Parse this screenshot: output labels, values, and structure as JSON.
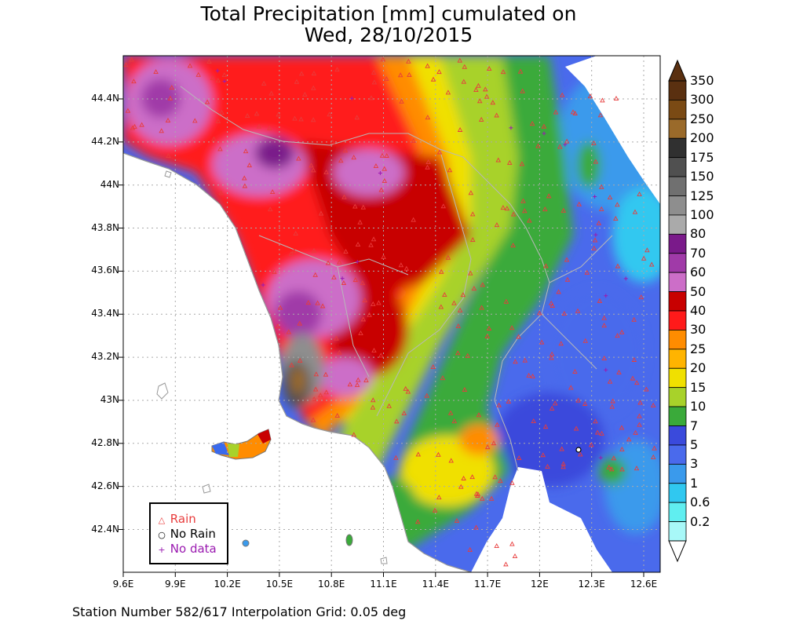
{
  "title": {
    "line1": "Total Precipitation [mm] cumulated on",
    "line2": "Wed, 28/10/2015"
  },
  "footer": "Station Number 582/617 Interpolation Grid: 0.05 deg",
  "axes": {
    "lon_ticks": [
      "9.6E",
      "9.9E",
      "10.2E",
      "10.5E",
      "10.8E",
      "11.1E",
      "11.4E",
      "11.7E",
      "12E",
      "12.3E",
      "12.6E"
    ],
    "lat_ticks": [
      "44.4N",
      "44.2N",
      "44N",
      "43.8N",
      "43.6N",
      "43.4N",
      "43.2N",
      "43N",
      "42.8N",
      "42.6N",
      "42.4N"
    ]
  },
  "colorbar": {
    "labels": [
      "350",
      "300",
      "250",
      "200",
      "175",
      "150",
      "125",
      "100",
      "80",
      "70",
      "60",
      "50",
      "40",
      "30",
      "25",
      "20",
      "15",
      "10",
      "7",
      "5",
      "3",
      "1",
      "0.6",
      "0.2"
    ],
    "colors": [
      "#5a3010",
      "#7a4a14",
      "#9a6a2a",
      "#303030",
      "#505050",
      "#707070",
      "#8e8e8e",
      "#aaaaaa",
      "#7a1a8a",
      "#a03aa8",
      "#cc6ec8",
      "#c80000",
      "#ff1a1a",
      "#ff8c00",
      "#ffb400",
      "#f0e000",
      "#a8d22a",
      "#3aaa3a",
      "#3a4adc",
      "#4a6aec",
      "#3a9aec",
      "#30c8f0",
      "#60eef0",
      "#a8f8f8"
    ],
    "top_arrow_color": "#5a3010",
    "bottom_arrow_color": "#ffffff"
  },
  "legend": {
    "rain": "Rain",
    "no_rain": "No Rain",
    "no_data": "No data",
    "rain_color": "#e83c3c",
    "no_data_color": "#9a1ab0"
  }
}
